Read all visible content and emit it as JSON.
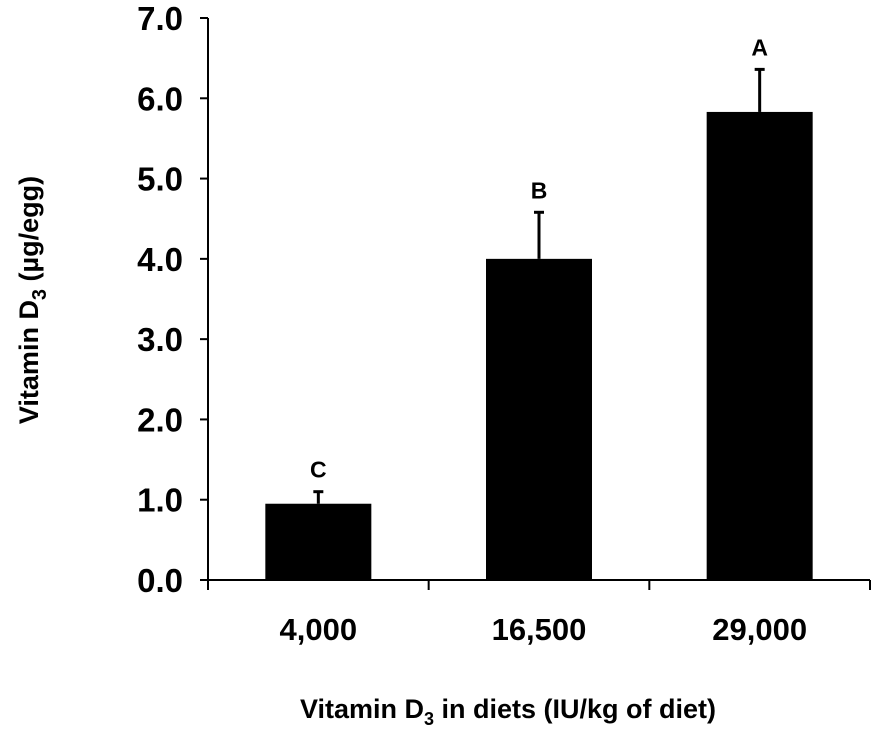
{
  "chart_data": {
    "type": "bar",
    "categories": [
      "4,000",
      "16,500",
      "29,000"
    ],
    "values": [
      0.95,
      4.0,
      5.83
    ],
    "errors": [
      0.15,
      0.58,
      0.53
    ],
    "significance_labels": [
      "C",
      "B",
      "A"
    ],
    "ylim": [
      0,
      7
    ],
    "yticks": [
      "0.0",
      "1.0",
      "2.0",
      "3.0",
      "4.0",
      "5.0",
      "6.0",
      "7.0"
    ],
    "ylabel": {
      "text": "Vitamin D",
      "sub": "3",
      "suffix": " (µg/egg)"
    },
    "xlabel": {
      "text": "Vitamin D",
      "sub": "3",
      "suffix": " in diets (IU/kg of diet)"
    },
    "bar_color": "#000000",
    "grid": false
  }
}
